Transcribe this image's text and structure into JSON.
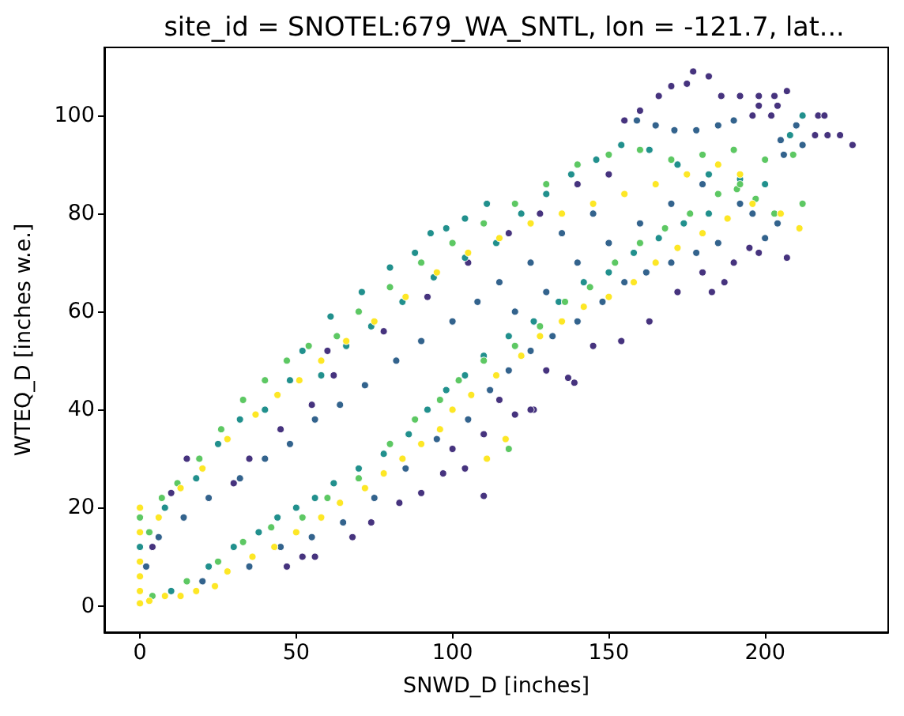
{
  "chart_data": {
    "type": "scatter",
    "title": "site_id = SNOTEL:679_WA_SNTL, lon = -121.7, lat...",
    "xlabel": "SNWD_D [inches]",
    "ylabel": "WTEQ_D [inches w.e.]",
    "marker": "circle",
    "xlim": [
      -11.4,
      239.4
    ],
    "ylim": [
      -5.4,
      113.9
    ],
    "xticks": [
      0,
      50,
      100,
      150,
      200
    ],
    "yticks": [
      0,
      20,
      40,
      60,
      80,
      100
    ],
    "series": [
      {
        "color": "#46337e",
        "x": [
          177,
          182,
          170,
          175,
          166,
          186,
          192,
          198,
          203,
          207,
          196,
          198,
          202,
          204,
          216,
          220,
          224,
          228,
          217,
          219,
          160,
          155,
          207,
          187,
          183,
          154,
          139,
          137,
          126,
          125,
          120,
          110,
          163,
          195,
          47,
          52,
          56,
          68,
          74,
          83,
          90,
          97,
          104,
          100,
          110,
          115,
          130,
          145,
          172,
          180,
          190,
          198,
          10,
          15,
          35,
          45,
          55,
          62,
          78,
          92,
          105,
          118,
          128,
          140,
          150,
          30,
          4,
          60
        ],
        "values": [
          109,
          108,
          106,
          106.5,
          104,
          104,
          104,
          104,
          104,
          105,
          100,
          102,
          100,
          102,
          96,
          96,
          96,
          94,
          100,
          100,
          101,
          99,
          71,
          66,
          64,
          54,
          45.5,
          46.5,
          40,
          40,
          39,
          22.4,
          58,
          73,
          8,
          10,
          10,
          14,
          17,
          21,
          23,
          27,
          28,
          32,
          35,
          42,
          48,
          53,
          64,
          68,
          70,
          72,
          23,
          30,
          30,
          36,
          41,
          47,
          56,
          63,
          70,
          76,
          80,
          86,
          88,
          25,
          12,
          52
        ]
      },
      {
        "color": "#33638d",
        "x": [
          159,
          165,
          171,
          178,
          185,
          190,
          205,
          210,
          212,
          206,
          200,
          204,
          196,
          192,
          185,
          178,
          170,
          162,
          155,
          148,
          140,
          132,
          125,
          120,
          130,
          140,
          150,
          160,
          170,
          180,
          145,
          135,
          125,
          115,
          108,
          100,
          90,
          82,
          72,
          64,
          56,
          48,
          40,
          32,
          22,
          14,
          6,
          2,
          20,
          35,
          45,
          55,
          65,
          75,
          85,
          95,
          105,
          112,
          118
        ],
        "values": [
          99,
          98,
          97,
          97,
          98,
          99,
          95,
          98,
          94,
          92,
          75,
          78,
          80,
          82,
          74,
          72,
          70,
          68,
          66,
          62,
          58,
          55,
          52,
          60,
          64,
          70,
          74,
          78,
          82,
          86,
          80,
          76,
          70,
          66,
          62,
          58,
          54,
          50,
          45,
          41,
          38,
          33,
          30,
          26,
          22,
          18,
          14,
          8,
          5,
          8,
          12,
          14,
          17,
          22,
          28,
          34,
          38,
          44,
          48
        ]
      },
      {
        "color": "#21908d",
        "x": [
          0,
          8,
          18,
          25,
          32,
          40,
          48,
          52,
          58,
          66,
          74,
          84,
          94,
          104,
          111,
          104,
          98,
          93,
          88,
          80,
          71,
          61,
          114,
          122,
          130,
          138,
          146,
          154,
          163,
          172,
          182,
          192,
          200,
          208,
          212,
          10,
          22,
          30,
          38,
          44,
          50,
          56,
          62,
          70,
          78,
          86,
          92,
          98,
          104,
          110,
          118,
          126,
          134,
          142,
          150,
          158,
          166,
          174,
          182
        ],
        "values": [
          12,
          20,
          26,
          33,
          38,
          40,
          46,
          52,
          47,
          53,
          57,
          62,
          67,
          71,
          82,
          79,
          77,
          76,
          72,
          69,
          64,
          59,
          74,
          80,
          84,
          88,
          91,
          94,
          93,
          90,
          88,
          87,
          86,
          96,
          100,
          3,
          8,
          12,
          15,
          18,
          20,
          22,
          25,
          28,
          31,
          35,
          40,
          44,
          47,
          51,
          55,
          58,
          62,
          66,
          68,
          72,
          75,
          78,
          80
        ]
      },
      {
        "color": "#5dc863",
        "x": [
          0,
          3,
          7,
          12,
          19,
          26,
          33,
          40,
          47,
          54,
          63,
          70,
          80,
          90,
          100,
          110,
          120,
          130,
          140,
          150,
          160,
          170,
          180,
          190,
          200,
          209,
          191,
          197,
          203,
          212,
          4,
          15,
          25,
          33,
          42,
          52,
          60,
          70,
          80,
          88,
          96,
          102,
          110,
          118,
          120,
          128,
          136,
          144,
          152,
          160,
          168,
          176,
          185,
          192
        ],
        "values": [
          18,
          15,
          22,
          25,
          30,
          36,
          42,
          46,
          50,
          53,
          55,
          60,
          65,
          70,
          74,
          78,
          82,
          86,
          90,
          92,
          93,
          91,
          92,
          93,
          91,
          92,
          85,
          83,
          80,
          82,
          2,
          5,
          9,
          13,
          16,
          18,
          22,
          26,
          33,
          38,
          42,
          46,
          50,
          32,
          53,
          57,
          62,
          65,
          70,
          74,
          77,
          80,
          84,
          86
        ]
      },
      {
        "color": "#fde725",
        "x": [
          0,
          0,
          0,
          0,
          0,
          0,
          3,
          8,
          13,
          18,
          24,
          28,
          36,
          43,
          50,
          58,
          64,
          72,
          78,
          84,
          90,
          96,
          100,
          106,
          111,
          114,
          117,
          122,
          128,
          135,
          142,
          150,
          158,
          165,
          172,
          180,
          188,
          196,
          205,
          211,
          6,
          13,
          20,
          28,
          37,
          44,
          51,
          58,
          66,
          75,
          85,
          95,
          105,
          115,
          125,
          135,
          145,
          155,
          165,
          175,
          185,
          192
        ],
        "values": [
          0.5,
          3,
          6,
          9,
          15,
          20,
          1,
          2,
          2,
          3,
          4,
          7,
          10,
          12,
          15,
          18,
          21,
          24,
          27,
          30,
          33,
          36,
          40,
          43,
          30,
          47,
          34,
          51,
          55,
          58,
          61,
          63,
          66,
          70,
          73,
          76,
          79,
          82,
          80,
          77,
          18,
          24,
          28,
          34,
          39,
          43,
          46,
          50,
          54,
          58,
          63,
          68,
          72,
          75,
          78,
          80,
          82,
          84,
          86,
          88,
          90,
          88
        ]
      }
    ]
  }
}
